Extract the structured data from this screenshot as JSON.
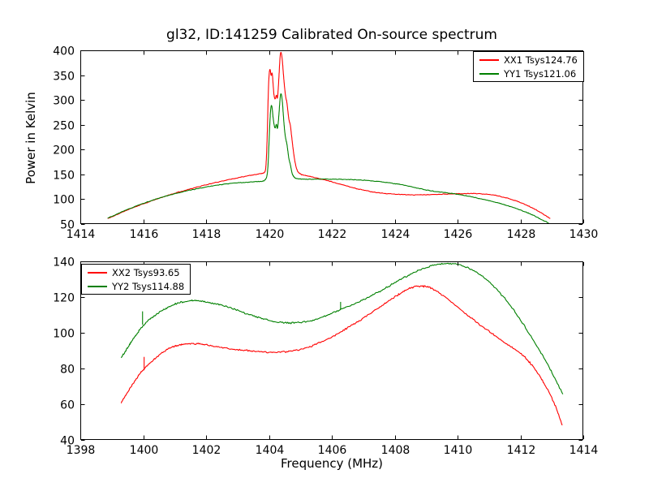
{
  "figure": {
    "background_color": "#ffffff",
    "axes_color": "#000000",
    "text_color": "#000000"
  },
  "chart_data": [
    {
      "type": "line",
      "subplot": "top",
      "title": "gl32, ID:141259 Calibrated On-source spectrum",
      "xlabel": "",
      "ylabel": "Power in Kelvin",
      "xlim": [
        1414,
        1430
      ],
      "ylim": [
        50,
        400
      ],
      "xticks": [
        1414,
        1416,
        1418,
        1420,
        1422,
        1424,
        1426,
        1428,
        1430
      ],
      "yticks": [
        50,
        100,
        150,
        200,
        250,
        300,
        350,
        400
      ],
      "grid": false,
      "legend_position": "upper right",
      "series": [
        {
          "name": "XX1 Tsys124.76",
          "color": "#ff0000",
          "noise_k": 0.8,
          "points": [
            [
              1414.87,
              61
            ],
            [
              1415.1,
              67
            ],
            [
              1415.4,
              76
            ],
            [
              1415.8,
              86
            ],
            [
              1416.2,
              95
            ],
            [
              1416.6,
              104
            ],
            [
              1417.0,
              112
            ],
            [
              1417.4,
              119
            ],
            [
              1417.8,
              126
            ],
            [
              1418.2,
              132
            ],
            [
              1418.6,
              138
            ],
            [
              1419.0,
              143
            ],
            [
              1419.4,
              148
            ],
            [
              1419.7,
              151
            ],
            [
              1419.85,
              153
            ],
            [
              1419.9,
              158
            ],
            [
              1419.94,
              210
            ],
            [
              1419.98,
              320
            ],
            [
              1420.01,
              358
            ],
            [
              1420.04,
              364
            ],
            [
              1420.07,
              346
            ],
            [
              1420.1,
              358
            ],
            [
              1420.13,
              336
            ],
            [
              1420.16,
              308
            ],
            [
              1420.2,
              300
            ],
            [
              1420.24,
              313
            ],
            [
              1420.27,
              298
            ],
            [
              1420.31,
              336
            ],
            [
              1420.35,
              385
            ],
            [
              1420.38,
              399
            ],
            [
              1420.42,
              386
            ],
            [
              1420.46,
              352
            ],
            [
              1420.5,
              323
            ],
            [
              1420.54,
              303
            ],
            [
              1420.57,
              297
            ],
            [
              1420.61,
              273
            ],
            [
              1420.64,
              258
            ],
            [
              1420.68,
              251
            ],
            [
              1420.72,
              228
            ],
            [
              1420.76,
              206
            ],
            [
              1420.8,
              186
            ],
            [
              1420.85,
              168
            ],
            [
              1420.9,
              157
            ],
            [
              1421.0,
              150
            ],
            [
              1421.2,
              147
            ],
            [
              1421.6,
              142
            ],
            [
              1422.0,
              135
            ],
            [
              1422.4,
              128
            ],
            [
              1422.8,
              121
            ],
            [
              1423.2,
              115.5
            ],
            [
              1423.6,
              112
            ],
            [
              1424.0,
              110
            ],
            [
              1424.4,
              109
            ],
            [
              1424.8,
              108.8
            ],
            [
              1425.2,
              109.3
            ],
            [
              1425.6,
              110.3
            ],
            [
              1426.0,
              111
            ],
            [
              1426.4,
              111.5
            ],
            [
              1426.8,
              111
            ],
            [
              1427.2,
              108
            ],
            [
              1427.5,
              103.5
            ],
            [
              1427.8,
              98
            ],
            [
              1428.1,
              91
            ],
            [
              1428.4,
              82
            ],
            [
              1428.7,
              71
            ],
            [
              1428.95,
              61
            ]
          ],
          "spikes": []
        },
        {
          "name": "YY1 Tsys121.06",
          "color": "#008000",
          "noise_k": 0.8,
          "points": [
            [
              1414.87,
              62
            ],
            [
              1415.1,
              68
            ],
            [
              1415.4,
              77
            ],
            [
              1415.8,
              87
            ],
            [
              1416.2,
              96
            ],
            [
              1416.6,
              104
            ],
            [
              1417.0,
              111
            ],
            [
              1417.4,
              117
            ],
            [
              1417.8,
              122
            ],
            [
              1418.2,
              127
            ],
            [
              1418.6,
              130.5
            ],
            [
              1419.0,
              133
            ],
            [
              1419.4,
              134.5
            ],
            [
              1419.7,
              135.5
            ],
            [
              1419.88,
              137
            ],
            [
              1419.96,
              150
            ],
            [
              1420.0,
              210
            ],
            [
              1420.03,
              258
            ],
            [
              1420.06,
              286
            ],
            [
              1420.09,
              291
            ],
            [
              1420.12,
              272
            ],
            [
              1420.16,
              250
            ],
            [
              1420.2,
              241
            ],
            [
              1420.24,
              254
            ],
            [
              1420.27,
              238
            ],
            [
              1420.31,
              263
            ],
            [
              1420.35,
              300
            ],
            [
              1420.38,
              316
            ],
            [
              1420.42,
              304
            ],
            [
              1420.46,
              268
            ],
            [
              1420.5,
              236
            ],
            [
              1420.54,
              219
            ],
            [
              1420.57,
              213
            ],
            [
              1420.61,
              193
            ],
            [
              1420.64,
              179
            ],
            [
              1420.68,
              171
            ],
            [
              1420.72,
              156
            ],
            [
              1420.76,
              148
            ],
            [
              1420.82,
              143
            ],
            [
              1420.9,
              141
            ],
            [
              1421.2,
              140
            ],
            [
              1421.6,
              140.5
            ],
            [
              1422.0,
              140.5
            ],
            [
              1422.4,
              140
            ],
            [
              1422.8,
              139
            ],
            [
              1423.2,
              137.5
            ],
            [
              1423.6,
              135
            ],
            [
              1424.0,
              131.5
            ],
            [
              1424.4,
              127.5
            ],
            [
              1424.8,
              121
            ],
            [
              1425.2,
              116.5
            ],
            [
              1425.7,
              112.5
            ],
            [
              1426.0,
              110
            ],
            [
              1426.4,
              105.5
            ],
            [
              1426.8,
              100
            ],
            [
              1427.2,
              94
            ],
            [
              1427.5,
              89
            ],
            [
              1427.8,
              83
            ],
            [
              1428.1,
              76
            ],
            [
              1428.4,
              68
            ],
            [
              1428.7,
              58
            ],
            [
              1428.9,
              52
            ]
          ],
          "spikes": []
        }
      ]
    },
    {
      "type": "line",
      "subplot": "bottom",
      "title": "",
      "xlabel": "Frequency (MHz)",
      "ylabel": "",
      "xlim": [
        1398,
        1414
      ],
      "ylim": [
        40,
        140
      ],
      "xticks": [
        1398,
        1400,
        1402,
        1404,
        1406,
        1408,
        1410,
        1412,
        1414
      ],
      "yticks": [
        40,
        60,
        80,
        100,
        120,
        140
      ],
      "grid": false,
      "legend_position": "upper left",
      "series": [
        {
          "name": "XX2 Tsys93.65",
          "color": "#ff0000",
          "noise_k": 0.55,
          "points": [
            [
              1399.3,
              61
            ],
            [
              1399.5,
              66.5
            ],
            [
              1399.7,
              72
            ],
            [
              1399.9,
              77.5
            ],
            [
              1400.1,
              81
            ],
            [
              1400.3,
              84.5
            ],
            [
              1400.6,
              89
            ],
            [
              1400.9,
              92
            ],
            [
              1401.2,
              93.5
            ],
            [
              1401.5,
              94
            ],
            [
              1401.8,
              93.8
            ],
            [
              1402.1,
              93
            ],
            [
              1402.5,
              91.8
            ],
            [
              1402.9,
              90.7
            ],
            [
              1403.3,
              90
            ],
            [
              1403.7,
              89.4
            ],
            [
              1404.1,
              89
            ],
            [
              1404.5,
              89.2
            ],
            [
              1404.9,
              90.2
            ],
            [
              1405.3,
              92.2
            ],
            [
              1405.7,
              95
            ],
            [
              1406.1,
              98.6
            ],
            [
              1406.5,
              102.8
            ],
            [
              1406.9,
              107
            ],
            [
              1407.3,
              111.8
            ],
            [
              1407.7,
              116.5
            ],
            [
              1408.0,
              120
            ],
            [
              1408.3,
              123.5
            ],
            [
              1408.6,
              125.8
            ],
            [
              1408.9,
              126.3
            ],
            [
              1409.2,
              124.8
            ],
            [
              1409.5,
              121.5
            ],
            [
              1409.9,
              116
            ],
            [
              1410.3,
              110
            ],
            [
              1410.7,
              104.5
            ],
            [
              1411.1,
              99.5
            ],
            [
              1411.5,
              94.5
            ],
            [
              1411.9,
              90
            ],
            [
              1412.2,
              85.5
            ],
            [
              1412.5,
              79
            ],
            [
              1412.8,
              70.5
            ],
            [
              1413.1,
              60
            ],
            [
              1413.33,
              48
            ]
          ],
          "spikes": [
            {
              "x": 1400.03,
              "y0": 79.0,
              "y1": 86.5
            }
          ]
        },
        {
          "name": "YY2 Tsys114.88",
          "color": "#008000",
          "noise_k": 0.55,
          "points": [
            [
              1399.3,
              86
            ],
            [
              1399.5,
              91.5
            ],
            [
              1399.7,
              97
            ],
            [
              1399.9,
              102
            ],
            [
              1400.1,
              106
            ],
            [
              1400.35,
              109.5
            ],
            [
              1400.6,
              112.5
            ],
            [
              1400.9,
              115.3
            ],
            [
              1401.2,
              117.2
            ],
            [
              1401.5,
              118
            ],
            [
              1401.8,
              117.8
            ],
            [
              1402.1,
              117
            ],
            [
              1402.4,
              115.8
            ],
            [
              1402.8,
              113.8
            ],
            [
              1403.2,
              111.3
            ],
            [
              1403.6,
              108.8
            ],
            [
              1404.0,
              106.8
            ],
            [
              1404.4,
              105.6
            ],
            [
              1404.8,
              105.4
            ],
            [
              1405.2,
              106.2
            ],
            [
              1405.6,
              108
            ],
            [
              1406.0,
              110.8
            ],
            [
              1406.3,
              113.2
            ],
            [
              1406.7,
              116
            ],
            [
              1407.1,
              119.3
            ],
            [
              1407.5,
              123
            ],
            [
              1407.9,
              127
            ],
            [
              1408.3,
              131
            ],
            [
              1408.7,
              134.5
            ],
            [
              1409.1,
              137.2
            ],
            [
              1409.5,
              138.8
            ],
            [
              1409.9,
              138.8
            ],
            [
              1410.3,
              136.8
            ],
            [
              1410.7,
              133
            ],
            [
              1411.1,
              127
            ],
            [
              1411.5,
              119.5
            ],
            [
              1411.9,
              110
            ],
            [
              1412.3,
              99
            ],
            [
              1412.7,
              87.5
            ],
            [
              1413.0,
              78
            ],
            [
              1413.35,
              65.5
            ]
          ],
          "spikes": [
            {
              "x": 1399.98,
              "y0": 104.5,
              "y1": 112.0
            },
            {
              "x": 1406.28,
              "y0": 112.8,
              "y1": 117.3
            }
          ]
        }
      ]
    }
  ]
}
